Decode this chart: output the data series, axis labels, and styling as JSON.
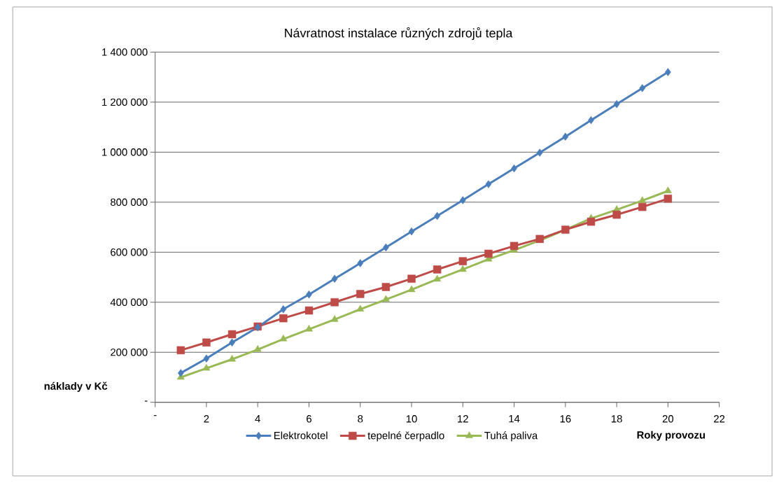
{
  "chart_data": {
    "type": "line",
    "title": "Návratnost instalace různých zdrojů tepla",
    "xlabel": "Roky provozu",
    "ylabel": "náklady v Kč",
    "x": [
      1,
      2,
      3,
      4,
      5,
      6,
      7,
      8,
      9,
      10,
      11,
      12,
      13,
      14,
      15,
      16,
      17,
      18,
      19,
      20
    ],
    "series": [
      {
        "name": "Elektrokotel",
        "color": "#4a7ebb",
        "marker": "diamond",
        "values": [
          117000,
          175000,
          239000,
          300000,
          372000,
          431000,
          494000,
          556000,
          619000,
          683000,
          745000,
          808000,
          872000,
          935000,
          998000,
          1062000,
          1128000,
          1192000,
          1256000,
          1320000
        ]
      },
      {
        "name": "tepelné čerpadlo",
        "color": "#be4b48",
        "marker": "square",
        "values": [
          208000,
          239000,
          272000,
          303000,
          336000,
          367000,
          400000,
          433000,
          461000,
          494000,
          531000,
          564000,
          594000,
          625000,
          653000,
          690000,
          722000,
          750000,
          781000,
          814000
        ]
      },
      {
        "name": "Tuhá paliva",
        "color": "#98b954",
        "marker": "triangle",
        "values": [
          100000,
          136000,
          172000,
          211000,
          253000,
          292000,
          331000,
          372000,
          411000,
          450000,
          492000,
          531000,
          572000,
          608000,
          647000,
          690000,
          735000,
          770000,
          806000,
          845000
        ]
      }
    ],
    "xlim": [
      0,
      22
    ],
    "xticks": [
      {
        "value": 0,
        "label": "-"
      },
      2,
      4,
      6,
      8,
      10,
      12,
      14,
      16,
      18,
      20,
      22
    ],
    "ylim": [
      0,
      1400000
    ],
    "yticks": [
      {
        "value": 0,
        "label": "-"
      },
      {
        "value": 200000,
        "label": "200 000"
      },
      {
        "value": 400000,
        "label": "400 000"
      },
      {
        "value": 600000,
        "label": "600 000"
      },
      {
        "value": 800000,
        "label": "800 000"
      },
      {
        "value": 1000000,
        "label": "1 000 000"
      },
      {
        "value": 1200000,
        "label": "1 200 000"
      },
      {
        "value": 1400000,
        "label": "1 400 000"
      }
    ],
    "grid": "y",
    "legend": "bottom",
    "line_style": "solid"
  }
}
